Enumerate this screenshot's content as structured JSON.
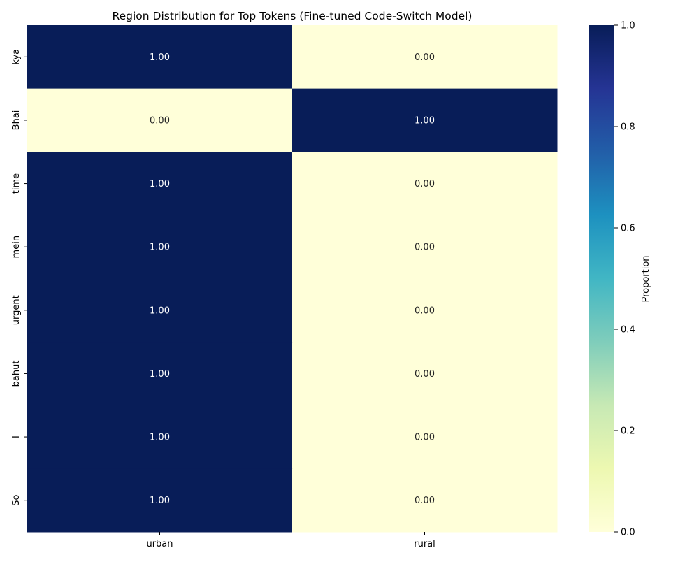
{
  "chart_data": {
    "type": "heatmap",
    "title": "Region Distribution for Top Tokens (Fine-tuned Code-Switch Model)",
    "x_categories": [
      "urban",
      "rural"
    ],
    "y_categories": [
      "kya",
      "Bhai",
      "time",
      "mein",
      "urgent",
      "bahut",
      "I",
      "So"
    ],
    "values": [
      [
        1.0,
        0.0
      ],
      [
        0.0,
        1.0
      ],
      [
        1.0,
        0.0
      ],
      [
        1.0,
        0.0
      ],
      [
        1.0,
        0.0
      ],
      [
        1.0,
        0.0
      ],
      [
        1.0,
        0.0
      ],
      [
        1.0,
        0.0
      ]
    ],
    "annotation_format": "0.00",
    "colormap": "YlGnBu",
    "vmin": 0,
    "vmax": 1,
    "colorbar": {
      "label": "Proportion",
      "ticks": [
        0.0,
        0.2,
        0.4,
        0.6,
        0.8,
        1.0
      ],
      "tick_labels": [
        "0.0",
        "0.2",
        "0.4",
        "0.6",
        "0.8",
        "1.0"
      ]
    },
    "xlabel": "",
    "ylabel": "",
    "grid": false
  }
}
